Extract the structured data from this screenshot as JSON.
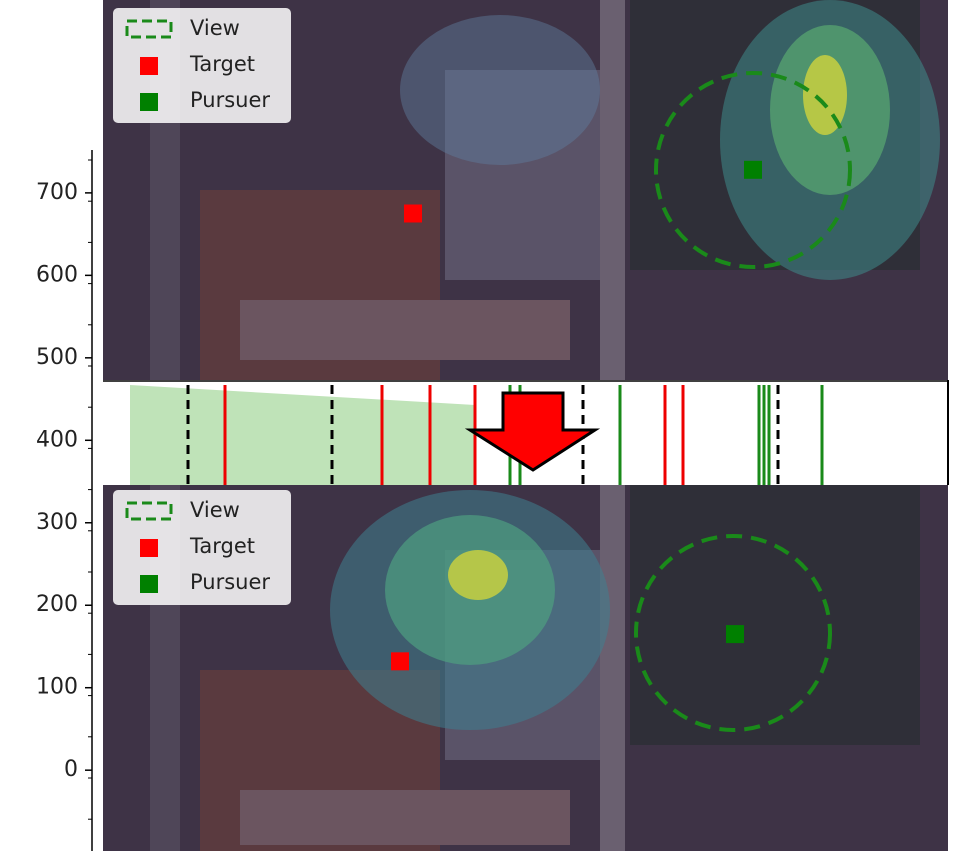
{
  "chart_data": {
    "type": "scatter",
    "ylim": [
      -98,
      752
    ],
    "yticks": [
      0,
      100,
      200,
      300,
      400,
      500,
      600,
      700
    ],
    "panels": [
      {
        "legend": [
          "View",
          "Target",
          "Pursuer"
        ],
        "target": 675,
        "pursuer": 728
      },
      {
        "legend": [
          "View",
          "Target",
          "Pursuer"
        ],
        "target": 132,
        "pursuer": 165
      }
    ]
  }
}
